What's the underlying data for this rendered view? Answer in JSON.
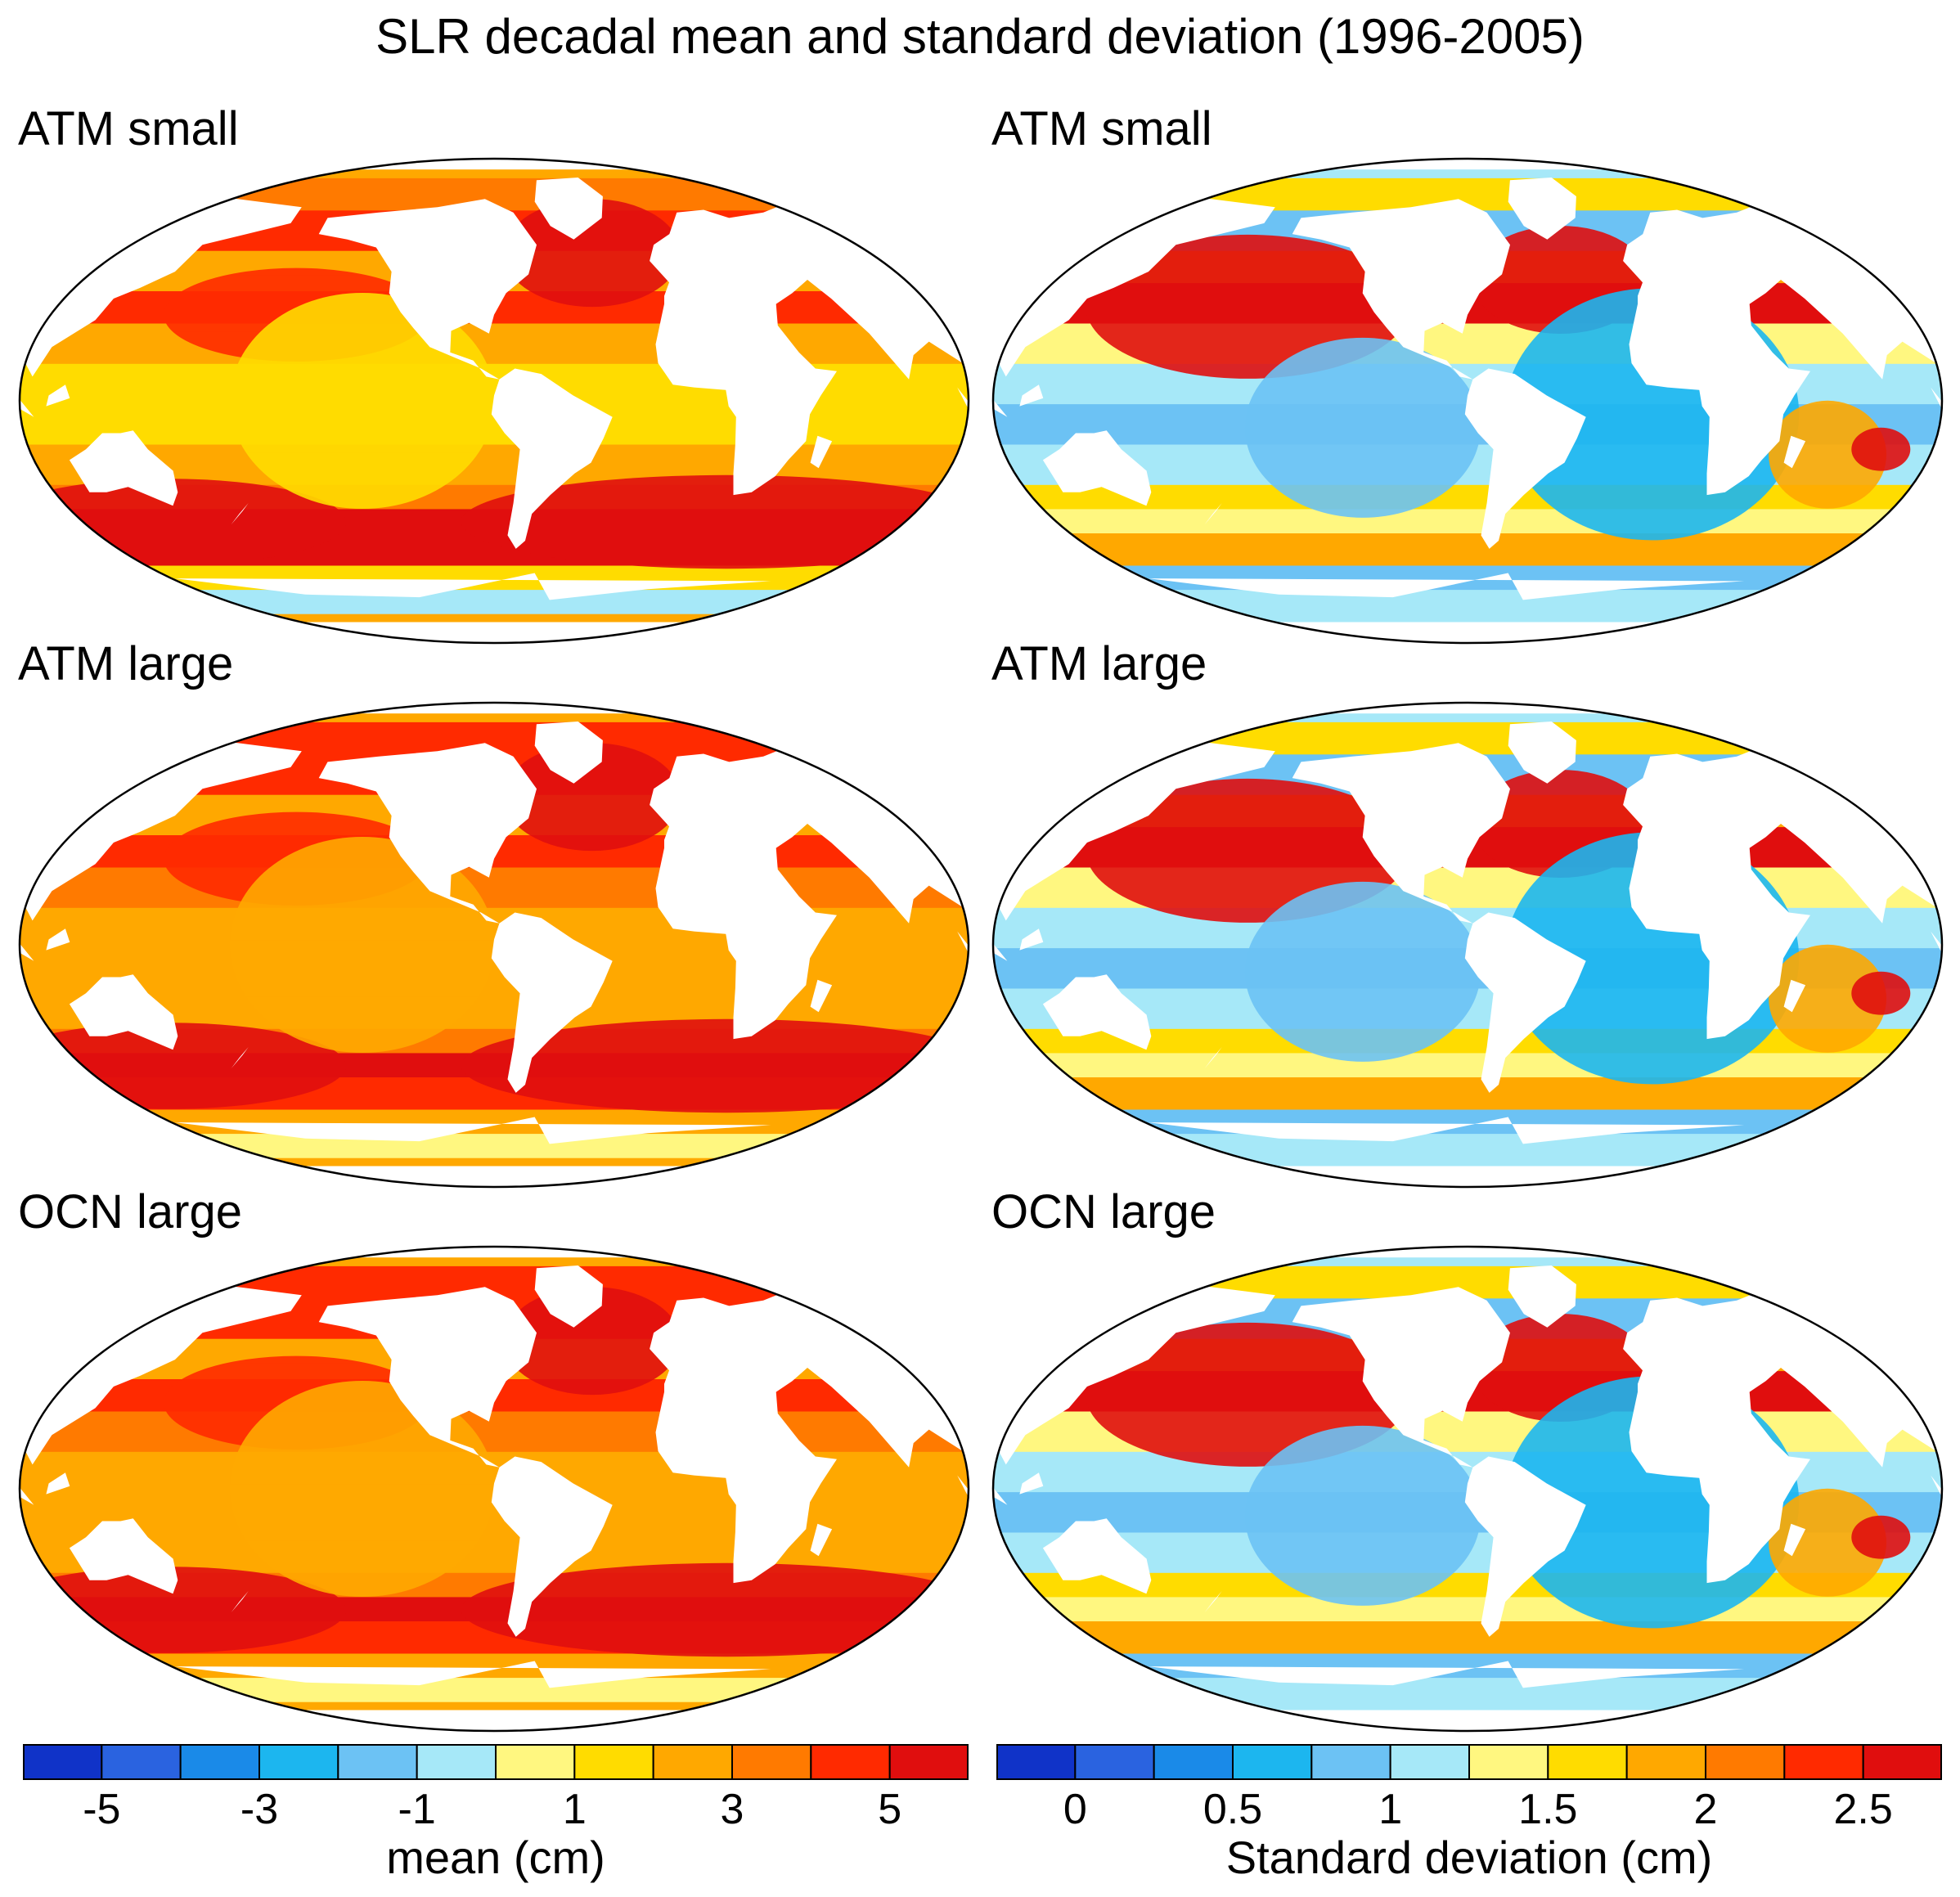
{
  "title": "SLR decadal mean and standard deviation (1996-2005)",
  "panels": [
    {
      "label": "ATM small",
      "field": "mean"
    },
    {
      "label": "ATM small",
      "field": "std"
    },
    {
      "label": "ATM large",
      "field": "mean"
    },
    {
      "label": "ATM large",
      "field": "std"
    },
    {
      "label": "OCN large",
      "field": "mean"
    },
    {
      "label": "OCN large",
      "field": "std"
    }
  ],
  "colorbars": {
    "mean": {
      "label": "mean (cm)",
      "levels": [
        -6,
        -5,
        -4,
        -3,
        -2,
        -1,
        0,
        1,
        2,
        3,
        4,
        5,
        6
      ],
      "tick_values": [
        -5,
        -3,
        -1,
        1,
        3,
        5
      ],
      "tick_labels": [
        "-5",
        "-3",
        "-1",
        "1",
        "3",
        "5"
      ]
    },
    "std": {
      "label": "Standard deviation (cm)",
      "levels": [
        -0.25,
        0,
        0.25,
        0.5,
        0.75,
        1,
        1.25,
        1.5,
        1.75,
        2,
        2.25,
        2.5,
        2.75
      ],
      "tick_values": [
        0,
        0.5,
        1,
        1.5,
        2,
        2.5
      ],
      "tick_labels": [
        "0",
        "0.5",
        "1",
        "1.5",
        "2",
        "2.5"
      ]
    }
  },
  "palette": [
    "#1033c8",
    "#2a63e0",
    "#1a8ae8",
    "#1cb6ef",
    "#6cc2f4",
    "#a6e8f8",
    "#fff780",
    "#ffdc00",
    "#ffa800",
    "#ff7a00",
    "#ff2a00",
    "#e00e0e"
  ],
  "land_color": "#ffffff"
}
